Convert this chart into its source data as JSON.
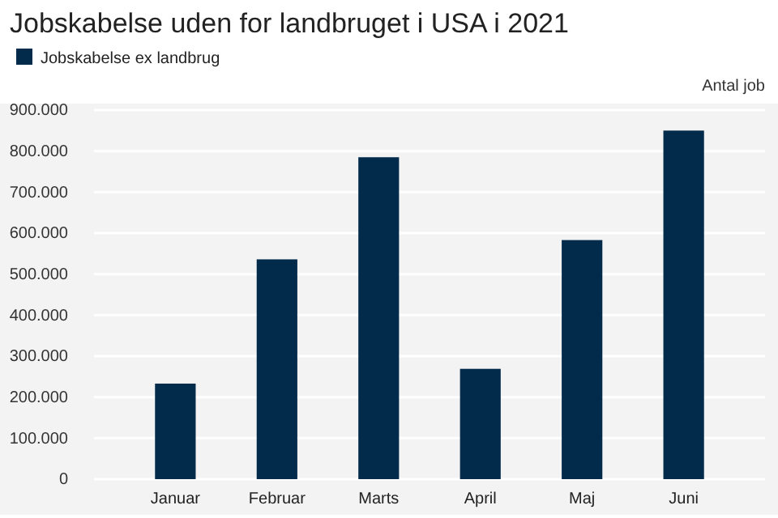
{
  "chart_data": {
    "type": "bar",
    "title": "Jobskabelse uden for landbruget i USA i 2021",
    "ylabel": "Antal job",
    "categories": [
      "Januar",
      "Februar",
      "Marts",
      "April",
      "Maj",
      "Juni"
    ],
    "series": [
      {
        "name": "Jobskabelse ex landbrug",
        "color": "#022a4a",
        "values": [
          233000,
          536000,
          785000,
          269000,
          583000,
          850000
        ]
      }
    ],
    "ylim": [
      0,
      900000
    ],
    "yticks": [
      {
        "value": 0,
        "label": "0"
      },
      {
        "value": 100000,
        "label": "100.000"
      },
      {
        "value": 200000,
        "label": "200.000"
      },
      {
        "value": 300000,
        "label": "300.000"
      },
      {
        "value": 400000,
        "label": "400.000"
      },
      {
        "value": 500000,
        "label": "500.000"
      },
      {
        "value": 600000,
        "label": "600.000"
      },
      {
        "value": 700000,
        "label": "700.000"
      },
      {
        "value": 800000,
        "label": "800.000"
      },
      {
        "value": 900000,
        "label": "900.000"
      }
    ],
    "grid": "y",
    "legend": "top left"
  }
}
